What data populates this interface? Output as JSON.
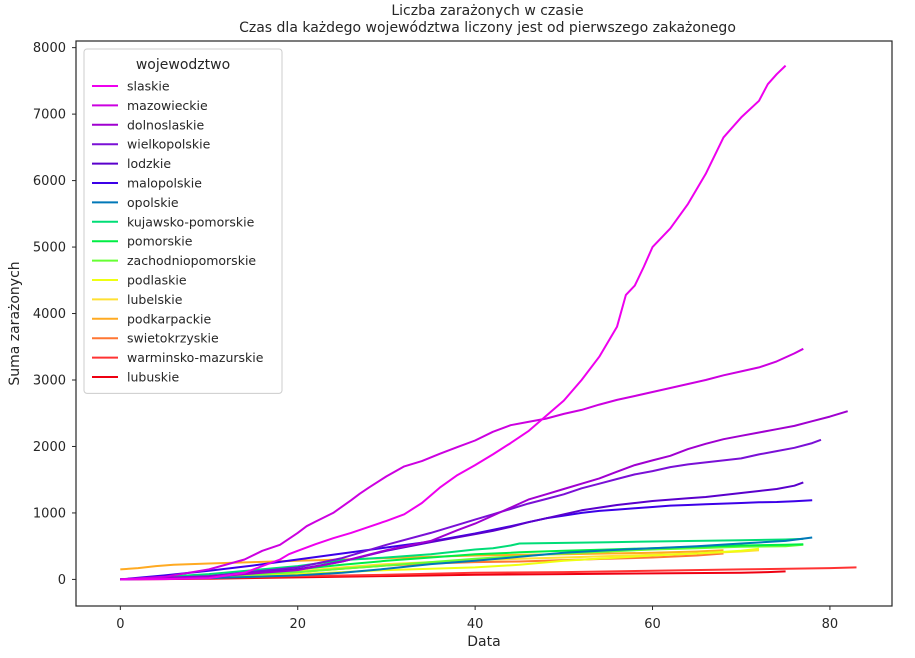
{
  "chart_data": {
    "type": "line",
    "title": "Liczba zarażonych w czasie",
    "subtitle": "Czas dla każdego województwa liczony jest od pierwszego zakażonego",
    "xlabel": "Data",
    "ylabel": "Suma zarażonych",
    "xlim": [
      -5,
      87
    ],
    "ylim": [
      -400,
      8100
    ],
    "xticks": [
      0,
      20,
      40,
      60,
      80
    ],
    "yticks": [
      0,
      1000,
      2000,
      3000,
      4000,
      5000,
      6000,
      7000,
      8000
    ],
    "grid": false,
    "legend_title": "wojewodztwo",
    "legend_position": "top-left",
    "series": [
      {
        "name": "slaskie",
        "color": "#ee00ee",
        "x": [
          0,
          5,
          10,
          14,
          16,
          18,
          19,
          20,
          22,
          24,
          26,
          28,
          30,
          32,
          34,
          36,
          38,
          40,
          42,
          44,
          46,
          48,
          50,
          52,
          54,
          56,
          57,
          58,
          59,
          60,
          62,
          64,
          66,
          68,
          70,
          72,
          73,
          74,
          75
        ],
        "y": [
          0,
          5,
          20,
          100,
          200,
          300,
          380,
          430,
          530,
          620,
          700,
          790,
          880,
          980,
          1150,
          1380,
          1570,
          1720,
          1880,
          2050,
          2230,
          2460,
          2690,
          3000,
          3350,
          3800,
          4280,
          4420,
          4700,
          5000,
          5280,
          5650,
          6100,
          6650,
          6950,
          7200,
          7450,
          7600,
          7730
        ]
      },
      {
        "name": "mazowieckie",
        "color": "#cc00e0",
        "x": [
          0,
          5,
          10,
          14,
          16,
          18,
          20,
          21,
          22,
          24,
          26,
          27,
          28,
          30,
          32,
          34,
          36,
          38,
          40,
          42,
          44,
          46,
          48,
          50,
          52,
          54,
          56,
          58,
          60,
          62,
          64,
          66,
          68,
          70,
          72,
          74,
          76,
          77
        ],
        "y": [
          0,
          40,
          150,
          300,
          430,
          520,
          700,
          800,
          870,
          1000,
          1190,
          1290,
          1380,
          1550,
          1700,
          1780,
          1890,
          1990,
          2090,
          2220,
          2320,
          2370,
          2420,
          2490,
          2550,
          2630,
          2700,
          2760,
          2820,
          2880,
          2940,
          3000,
          3070,
          3130,
          3190,
          3280,
          3400,
          3470
        ]
      },
      {
        "name": "dolnoslaskie",
        "color": "#a000d0",
        "x": [
          0,
          10,
          20,
          25,
          30,
          35,
          38,
          40,
          42,
          44,
          46,
          48,
          50,
          52,
          54,
          56,
          58,
          60,
          62,
          64,
          66,
          68,
          70,
          72,
          74,
          76,
          78,
          80,
          82
        ],
        "y": [
          0,
          40,
          140,
          270,
          440,
          580,
          740,
          840,
          960,
          1080,
          1200,
          1280,
          1360,
          1440,
          1520,
          1620,
          1720,
          1790,
          1860,
          1960,
          2040,
          2110,
          2160,
          2210,
          2260,
          2310,
          2380,
          2450,
          2530
        ]
      },
      {
        "name": "wielkopolskie",
        "color": "#7a10d6",
        "x": [
          0,
          10,
          20,
          25,
          30,
          35,
          38,
          40,
          42,
          44,
          46,
          48,
          50,
          52,
          54,
          56,
          58,
          60,
          62,
          64,
          66,
          68,
          70,
          72,
          74,
          76,
          78,
          79
        ],
        "y": [
          0,
          50,
          180,
          320,
          520,
          700,
          820,
          900,
          980,
          1060,
          1140,
          1210,
          1280,
          1370,
          1440,
          1510,
          1580,
          1630,
          1690,
          1730,
          1760,
          1790,
          1820,
          1880,
          1930,
          1980,
          2050,
          2100
        ]
      },
      {
        "name": "lodzkie",
        "color": "#5a00cc",
        "x": [
          0,
          10,
          20,
          25,
          30,
          35,
          40,
          42,
          44,
          46,
          48,
          50,
          52,
          54,
          56,
          58,
          60,
          62,
          64,
          66,
          68,
          70,
          72,
          74,
          76,
          77
        ],
        "y": [
          0,
          40,
          150,
          270,
          430,
          560,
          680,
          730,
          790,
          860,
          920,
          980,
          1040,
          1080,
          1120,
          1150,
          1180,
          1200,
          1220,
          1240,
          1270,
          1300,
          1330,
          1360,
          1410,
          1460
        ]
      },
      {
        "name": "malopolskie",
        "color": "#3c00e8",
        "x": [
          0,
          5,
          10,
          15,
          20,
          25,
          30,
          35,
          40,
          44,
          46,
          48,
          50,
          52,
          54,
          56,
          58,
          60,
          62,
          64,
          66,
          68,
          70,
          72,
          74,
          76,
          78
        ],
        "y": [
          0,
          60,
          130,
          210,
          300,
          390,
          480,
          570,
          690,
          800,
          860,
          920,
          960,
          1000,
          1030,
          1050,
          1070,
          1090,
          1110,
          1120,
          1130,
          1140,
          1150,
          1160,
          1165,
          1175,
          1190
        ]
      },
      {
        "name": "opolskie",
        "color": "#0078b8",
        "x": [
          0,
          10,
          20,
          25,
          30,
          35,
          40,
          45,
          50,
          55,
          60,
          65,
          70,
          75,
          78
        ],
        "y": [
          0,
          20,
          60,
          100,
          160,
          230,
          280,
          340,
          400,
          440,
          470,
          500,
          540,
          580,
          630
        ]
      },
      {
        "name": "kujawsko-pomorskie",
        "color": "#00dd77",
        "x": [
          0,
          10,
          20,
          25,
          30,
          35,
          40,
          42,
          44,
          45,
          50,
          55,
          60,
          65,
          70,
          75,
          77
        ],
        "y": [
          0,
          80,
          200,
          290,
          330,
          380,
          450,
          470,
          510,
          540,
          550,
          560,
          570,
          580,
          590,
          600,
          610
        ]
      },
      {
        "name": "pomorskie",
        "color": "#00ee44",
        "x": [
          0,
          10,
          20,
          25,
          30,
          35,
          40,
          44,
          45,
          50,
          55,
          60,
          65,
          70,
          75,
          77
        ],
        "y": [
          0,
          50,
          150,
          220,
          280,
          330,
          380,
          400,
          410,
          430,
          450,
          470,
          490,
          510,
          520,
          530
        ]
      },
      {
        "name": "zachodniopomorskie",
        "color": "#66ff33",
        "x": [
          0,
          10,
          20,
          25,
          30,
          35,
          40,
          45,
          50,
          55,
          60,
          65,
          70,
          75,
          77
        ],
        "y": [
          0,
          40,
          110,
          160,
          210,
          260,
          310,
          350,
          390,
          420,
          450,
          470,
          490,
          500,
          520
        ]
      },
      {
        "name": "podlaskie",
        "color": "#eeff11",
        "x": [
          0,
          10,
          20,
          25,
          30,
          35,
          40,
          45,
          50,
          55,
          60,
          65,
          70,
          72
        ],
        "y": [
          0,
          30,
          80,
          110,
          140,
          160,
          180,
          220,
          280,
          320,
          360,
          390,
          430,
          460
        ]
      },
      {
        "name": "lubelskie",
        "color": "#ffe033",
        "x": [
          0,
          10,
          20,
          25,
          30,
          35,
          40,
          45,
          50,
          55,
          60,
          65,
          70,
          72
        ],
        "y": [
          0,
          40,
          120,
          180,
          230,
          260,
          290,
          310,
          330,
          350,
          370,
          390,
          420,
          440
        ]
      },
      {
        "name": "podkarpackie",
        "color": "#ffaa22",
        "x": [
          0,
          2,
          4,
          6,
          10,
          15,
          20,
          25,
          30,
          35,
          40,
          45,
          50,
          55,
          60,
          65,
          68
        ],
        "y": [
          150,
          170,
          200,
          220,
          240,
          260,
          280,
          300,
          320,
          340,
          360,
          370,
          380,
          390,
          400,
          420,
          440
        ]
      },
      {
        "name": "swietokrzyskie",
        "color": "#ff7733",
        "x": [
          0,
          10,
          20,
          25,
          30,
          35,
          40,
          45,
          50,
          55,
          60,
          65,
          68
        ],
        "y": [
          0,
          50,
          110,
          160,
          210,
          240,
          260,
          270,
          290,
          310,
          330,
          360,
          390
        ]
      },
      {
        "name": "warminsko-mazurskie",
        "color": "#ff3333",
        "x": [
          0,
          10,
          20,
          30,
          40,
          50,
          60,
          70,
          80,
          83
        ],
        "y": [
          0,
          20,
          50,
          70,
          100,
          110,
          130,
          150,
          170,
          180
        ]
      },
      {
        "name": "lubuskie",
        "color": "#ee0011",
        "x": [
          0,
          10,
          20,
          30,
          40,
          50,
          60,
          70,
          73,
          75
        ],
        "y": [
          0,
          10,
          30,
          50,
          70,
          80,
          90,
          100,
          110,
          120
        ]
      }
    ]
  }
}
